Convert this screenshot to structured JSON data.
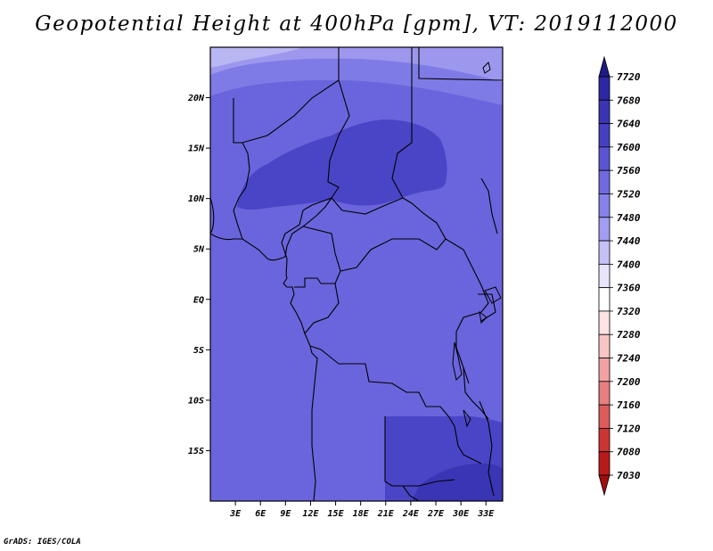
{
  "title": "Geopotential Height at 400hPa [gpm], VT: 2019112000",
  "credit": "GrADS: IGES/COLA",
  "lat_labels": [
    "20N",
    "15N",
    "10N",
    "5N",
    "EQ",
    "5S",
    "10S",
    "15S"
  ],
  "lat_values": [
    20,
    15,
    10,
    5,
    0,
    -5,
    -10,
    -15
  ],
  "lon_labels": [
    "3E",
    "6E",
    "9E",
    "12E",
    "15E",
    "18E",
    "21E",
    "24E",
    "27E",
    "30E",
    "33E"
  ],
  "lon_values": [
    3,
    6,
    9,
    12,
    15,
    18,
    21,
    24,
    27,
    30,
    33
  ],
  "map_extent": {
    "lon_min": 0,
    "lon_max": 35,
    "lat_min": -20,
    "lat_max": 25
  },
  "colorbar": {
    "labels": [
      "7720",
      "7680",
      "7640",
      "7600",
      "7560",
      "7520",
      "7480",
      "7440",
      "7400",
      "7360",
      "7320",
      "7280",
      "7240",
      "7200",
      "7160",
      "7120",
      "7080",
      "7030"
    ],
    "colors": [
      "#1e1a86",
      "#2c27a2",
      "#3a35b4",
      "#4540c2",
      "#5a55d2",
      "#6f6ade",
      "#8682ea",
      "#a19df0",
      "#c3c1f6",
      "#e6e5fb",
      "#ffffff",
      "#fde3e3",
      "#f8c4c4",
      "#f0a2a2",
      "#e67f7f",
      "#dc5b5b",
      "#cc3434",
      "#b81a1a",
      "#9e0e0e"
    ]
  }
}
